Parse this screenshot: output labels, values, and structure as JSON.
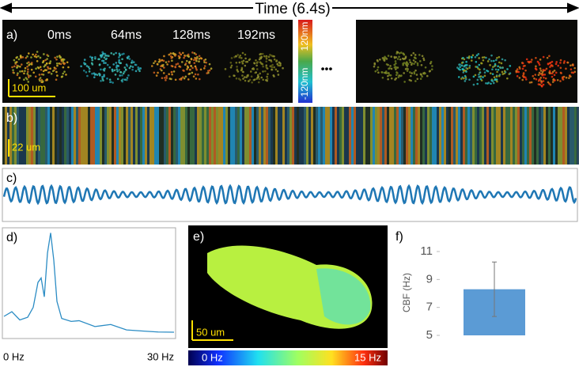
{
  "panels": {
    "title": "Time (6.4s)",
    "a": {
      "label": "a)",
      "frames": [
        "0ms",
        "64ms",
        "128ms",
        "192ms"
      ],
      "scale": "100 um",
      "colorbar": [
        "120nm",
        "-120nm"
      ],
      "ellipsis": "•••"
    },
    "b": {
      "label": "b)",
      "scale": "22 um"
    },
    "c": {
      "label": "c)"
    },
    "d": {
      "label": "d)",
      "axis": [
        "0 Hz",
        "30 Hz"
      ]
    },
    "e": {
      "label": "e)",
      "scale": "50 um",
      "colorbar": [
        "0 Hz",
        "15 Hz"
      ]
    },
    "f": {
      "label": "f)"
    }
  },
  "chart_data": {
    "type": "bar",
    "ylabel": "CBF  (Hz)",
    "categories": [
      null
    ],
    "values": [
      8.3
    ],
    "errors": [
      1.95
    ],
    "color": "#5b9bd5",
    "ylim": [
      5,
      11
    ],
    "yticks": [
      5,
      7,
      9,
      11
    ]
  }
}
